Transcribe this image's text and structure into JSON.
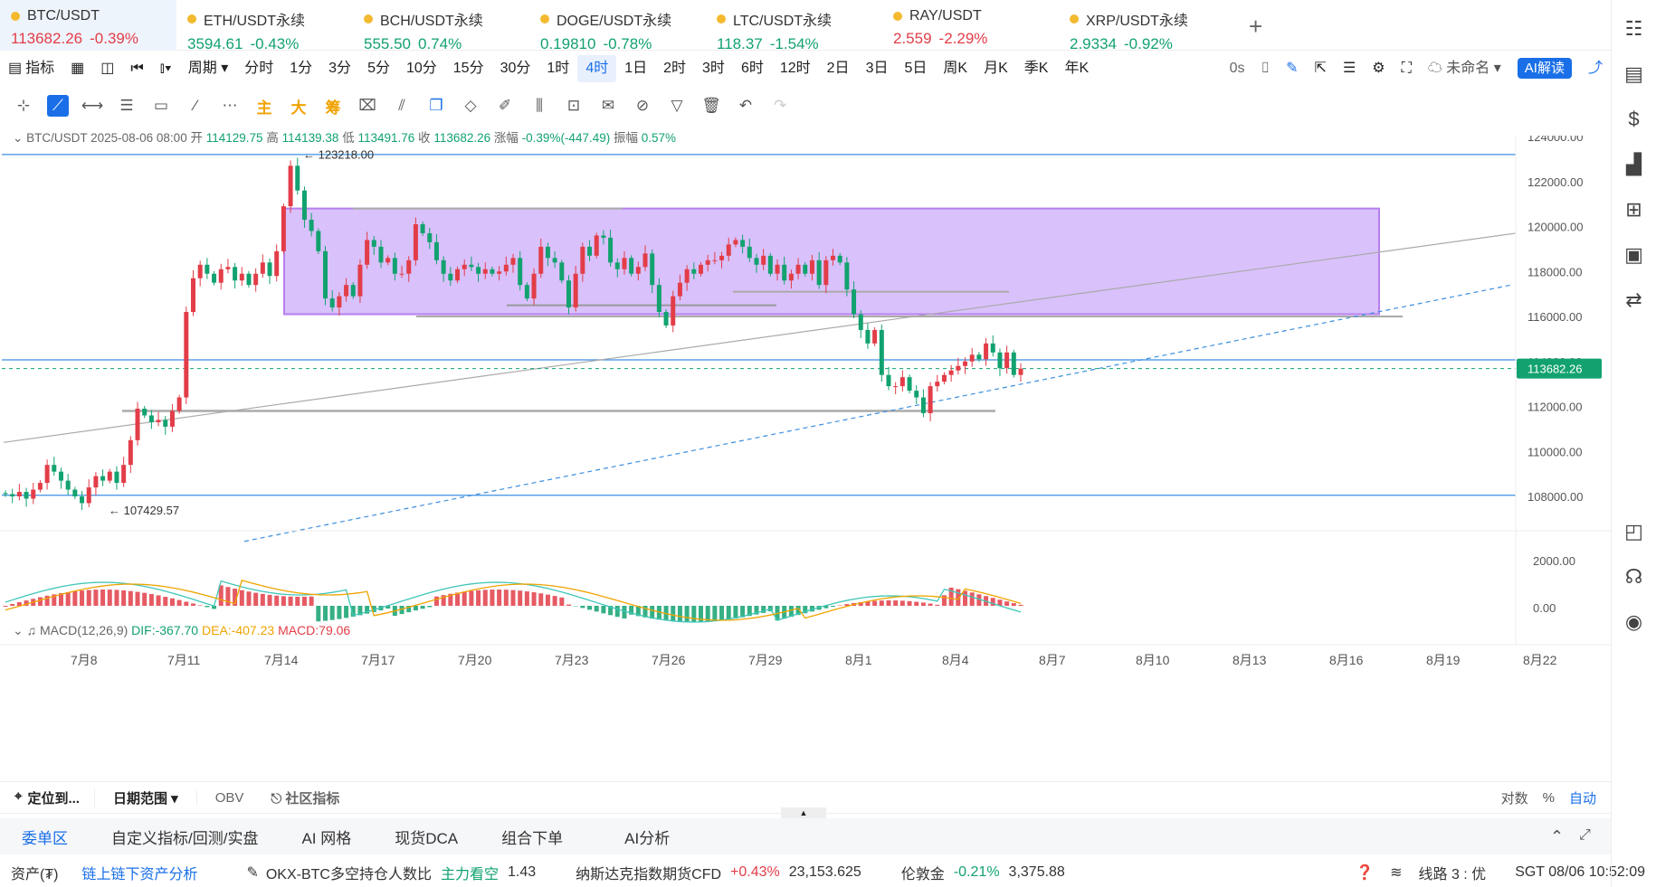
{
  "tickers": [
    {
      "name": "BTC/USDT",
      "price": "113682.26",
      "change": "-0.39%",
      "dir": "down",
      "selected": true
    },
    {
      "name": "ETH/USDT永续",
      "price": "3594.61",
      "change": "-0.43%",
      "dir": "up"
    },
    {
      "name": "BCH/USDT永续",
      "price": "555.50",
      "change": "0.74%",
      "dir": "up"
    },
    {
      "name": "DOGE/USDT永续",
      "price": "0.19810",
      "change": "-0.78%",
      "dir": "up"
    },
    {
      "name": "LTC/USDT永续",
      "price": "118.37",
      "change": "-1.54%",
      "dir": "up"
    },
    {
      "name": "RAY/USDT",
      "price": "2.559",
      "change": "-2.29%",
      "dir": "down"
    },
    {
      "name": "XRP/USDT永续",
      "price": "2.9334",
      "change": "-0.92%",
      "dir": "up"
    }
  ],
  "add_tab": "+",
  "toolbar": {
    "indicator": "指标",
    "period": "周期",
    "intervals": [
      "分时",
      "1分",
      "3分",
      "5分",
      "10分",
      "15分",
      "30分",
      "1时",
      "4时",
      "1日",
      "2时",
      "3时",
      "6时",
      "12时",
      "2日",
      "3日",
      "5日",
      "周K",
      "月K",
      "季K",
      "年K"
    ],
    "active_interval": "4时",
    "countdown": "0s",
    "layout_name": "未命名",
    "ai_label": "AI解读"
  },
  "drawtools": {
    "main": "主",
    "big": "大",
    "chip": "筹"
  },
  "ohlc": {
    "symbol": "BTC/USDT",
    "datetime": "2025-08-06 08:00",
    "open_label": "开",
    "open": "114129.75",
    "high_label": "高",
    "high": "114139.38",
    "low_label": "低",
    "low": "113491.76",
    "close_label": "收",
    "close": "113682.26",
    "chg_label": "涨幅",
    "chg": "-0.39%(-447.49)",
    "amp_label": "振幅",
    "amp": "0.57%"
  },
  "chart_data": {
    "type": "candlestick",
    "y_ticks": [
      "124000.00",
      "122000.00",
      "120000.00",
      "118000.00",
      "116000.00",
      "114000.00",
      "112000.00",
      "110000.00",
      "108000.00"
    ],
    "ylim": [
      106000,
      125000
    ],
    "x_ticks": [
      "7月8",
      "7月11",
      "7月14",
      "7月17",
      "7月20",
      "7月23",
      "7月26",
      "7月29",
      "8月1",
      "8月4",
      "8月7",
      "8月10",
      "8月13",
      "8月16",
      "8月19",
      "8月22"
    ],
    "current_price": "113682.26",
    "high_annot": "123218.00",
    "low_annot": "107429.57",
    "close_series": [
      108100,
      108000,
      108200,
      107900,
      108300,
      108600,
      109400,
      109100,
      108700,
      108300,
      108000,
      107700,
      108400,
      108900,
      108700,
      109100,
      108600,
      109400,
      110500,
      111900,
      111600,
      111300,
      111400,
      111100,
      111800,
      112400,
      116200,
      117700,
      118300,
      117900,
      117500,
      118100,
      118200,
      117600,
      117900,
      117400,
      117900,
      118400,
      117800,
      118900,
      120900,
      122700,
      121600,
      120300,
      119800,
      118900,
      116800,
      116400,
      116900,
      117400,
      116900,
      118300,
      119400,
      119100,
      118400,
      118600,
      117900,
      117900,
      118500,
      120100,
      119700,
      119300,
      118500,
      117900,
      117600,
      118100,
      118300,
      118200,
      117900,
      118100,
      117900,
      118000,
      118300,
      118600,
      117400,
      116800,
      117900,
      119100,
      118600,
      118400,
      117600,
      116400,
      117900,
      119100,
      118700,
      119600,
      119500,
      118400,
      118100,
      118600,
      117900,
      118200,
      118800,
      117400,
      116200,
      115600,
      116900,
      117500,
      118100,
      117900,
      118300,
      118500,
      118500,
      118700,
      119200,
      119400,
      119100,
      118600,
      118300,
      118700,
      117900,
      118300,
      117600,
      117900,
      118300,
      117900,
      118500,
      117400,
      118500,
      118700,
      118400,
      117200,
      116100,
      115400,
      114800,
      115400,
      113400,
      112900,
      112900,
      113300,
      112700,
      112400,
      111700,
      112900,
      113100,
      113400,
      113600,
      113800,
      114000,
      114300,
      114100,
      114800,
      114400,
      113700,
      114400,
      113400,
      113682
    ],
    "macd_yticks": [
      "2000.00",
      "0.00"
    ],
    "macd_name": "MACD(12,26,9)",
    "dif": "DIF:-367.70",
    "dea": "DEA:-407.23",
    "macd": "MACD:79.06"
  },
  "bottom1": {
    "locate": "定位到...",
    "date_range": "日期范围",
    "obv": "OBV",
    "community": "社区指标",
    "log": "对数",
    "pct": "%",
    "auto": "自动"
  },
  "bottom2": [
    "委单区",
    "自定义指标/回测/实盘",
    "AI 网格",
    "现货DCA",
    "组合下单",
    "AI分析"
  ],
  "status": {
    "assets": "资产(₮)",
    "chain": "链上链下资产分析",
    "ratio_label": "OKX-BTC多空持仓人数比",
    "ratio_tag": "主力看空",
    "ratio": "1.43",
    "nasdaq": "纳斯达克指数期货CFD",
    "nasdaq_chg": "+0.43%",
    "nasdaq_val": "23,153.625",
    "gold": "伦敦金",
    "gold_chg": "-0.21%",
    "gold_val": "3,375.88",
    "line": "线路 3 : 优",
    "time": "SGT 08/06 10:52:09"
  }
}
